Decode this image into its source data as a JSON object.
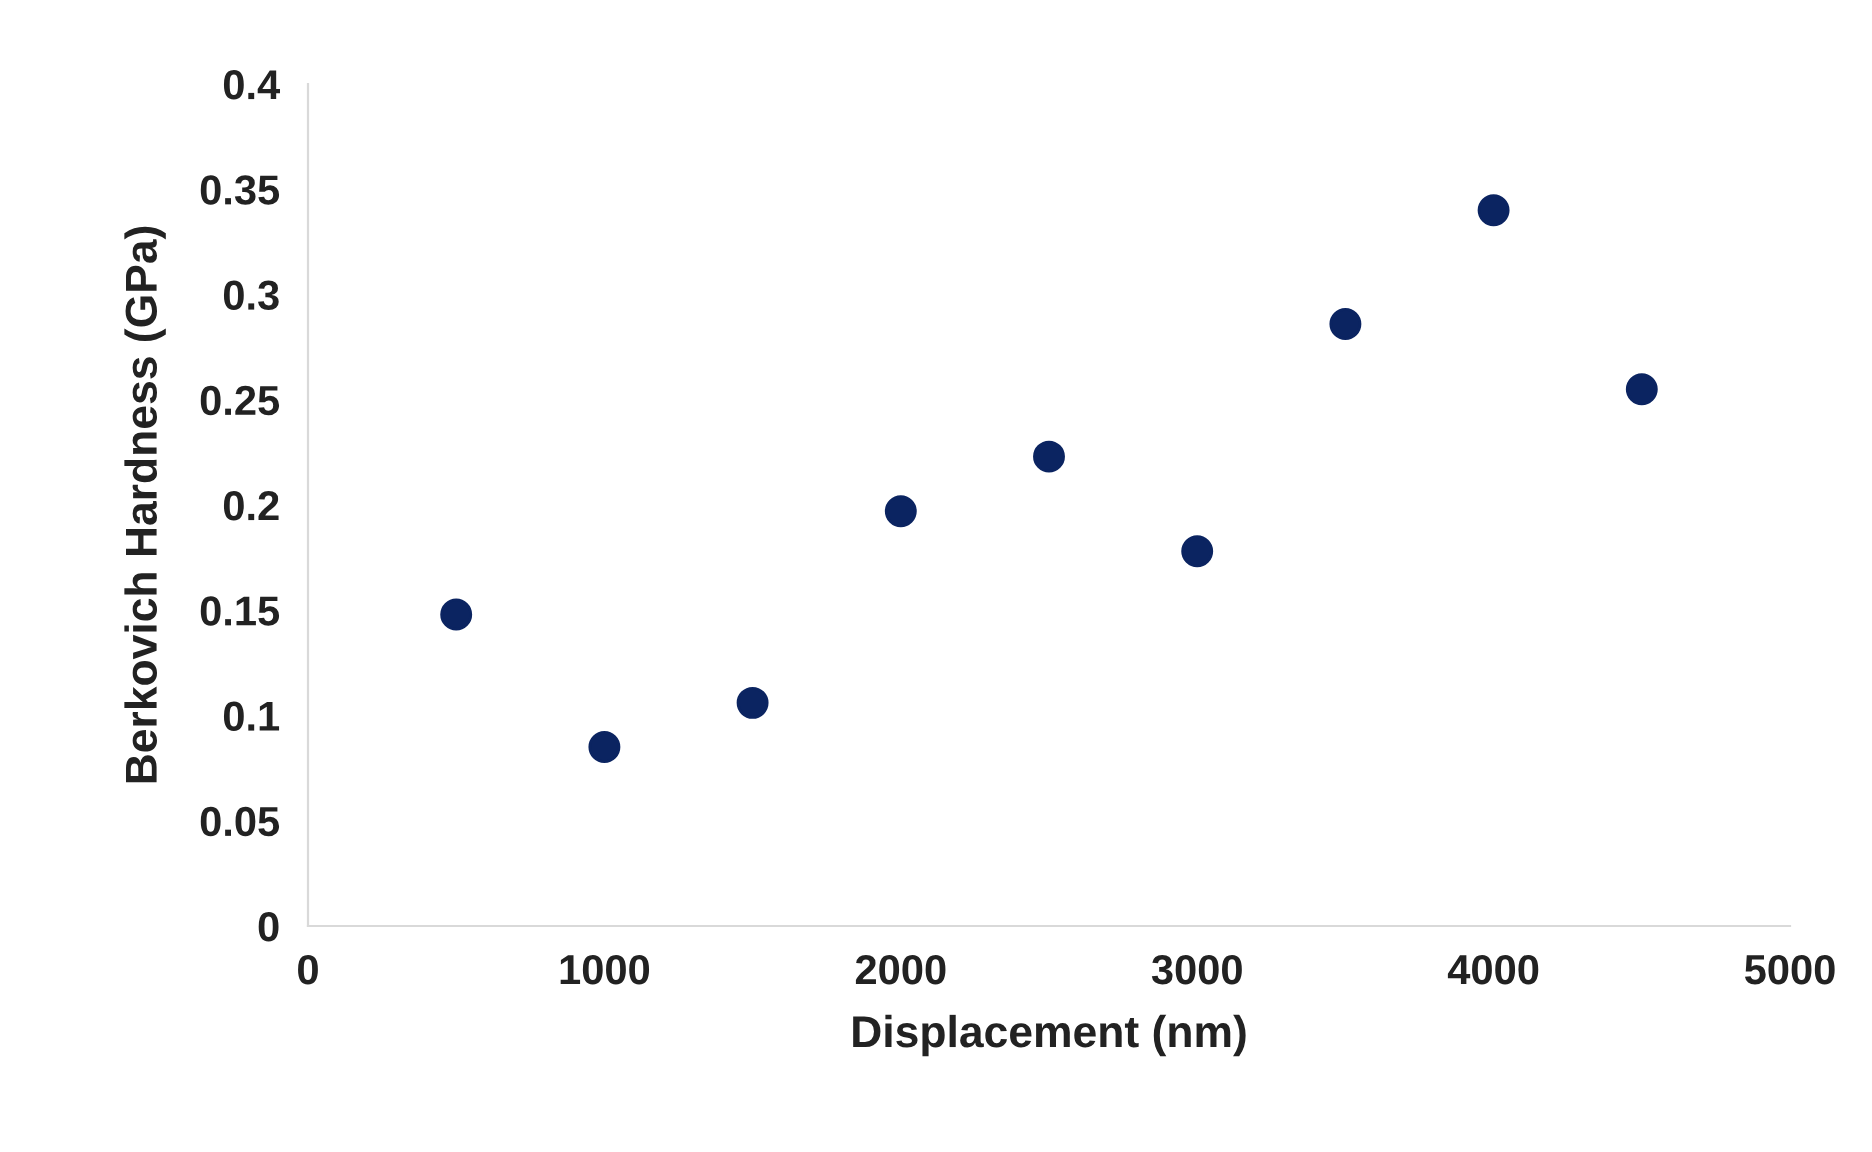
{
  "chart_data": {
    "type": "scatter",
    "xlabel": "Displacement (nm)",
    "ylabel": "Berkovich Hardness (GPa)",
    "x": [
      500,
      1000,
      1500,
      2000,
      2500,
      3000,
      3500,
      4000,
      4500
    ],
    "series": [
      {
        "color": "#0b2461",
        "values": [
          0.148,
          0.085,
          0.106,
          0.197,
          0.223,
          0.178,
          0.286,
          0.34,
          0.255
        ]
      }
    ],
    "xlim": [
      0,
      5000
    ],
    "xticks": [
      0,
      1000,
      2000,
      3000,
      4000,
      5000
    ],
    "ylim": [
      0,
      0.4
    ],
    "yticks": [
      0,
      0.05,
      0.1,
      0.15,
      0.2,
      0.25,
      0.3,
      0.35,
      0.4
    ],
    "marker": "circle",
    "grid": false,
    "legend": false
  }
}
